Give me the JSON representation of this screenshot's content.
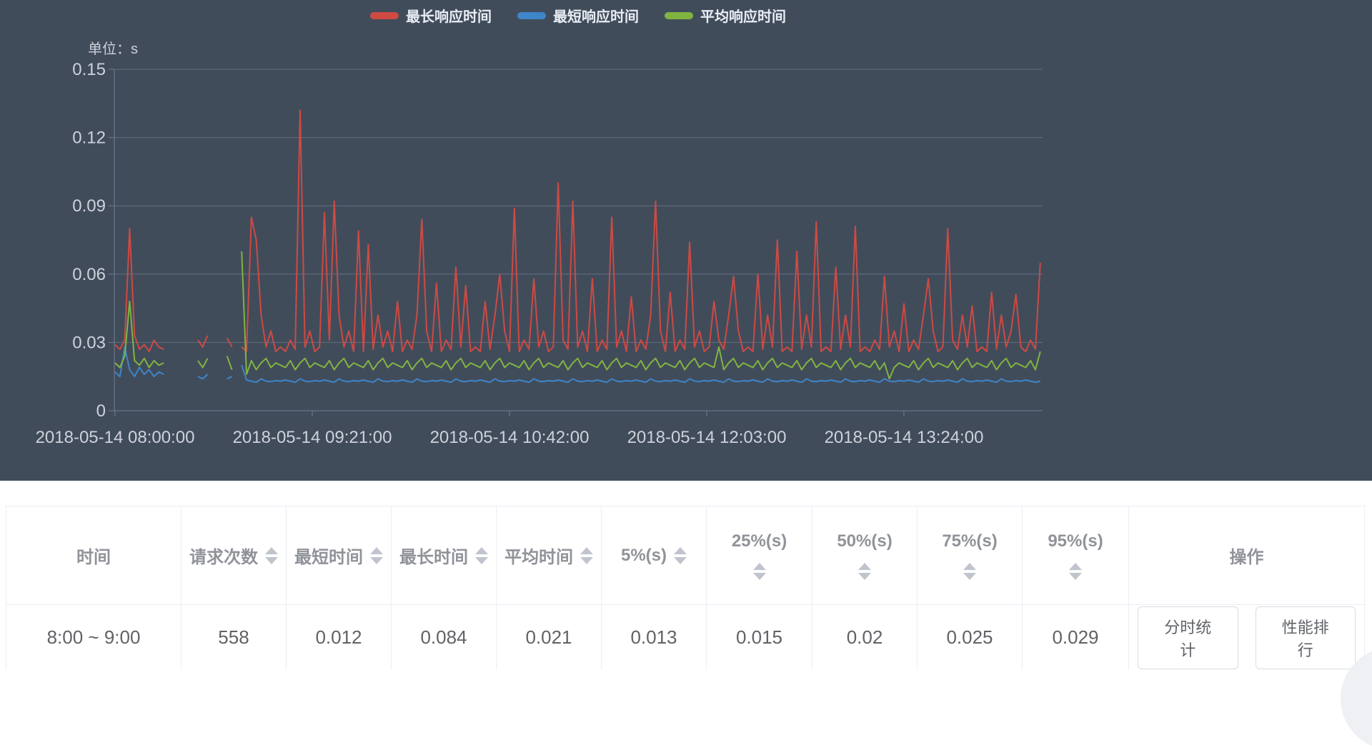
{
  "chart_data": {
    "type": "line",
    "unit_label": "单位：s",
    "background_color": "#414c5b",
    "grid": true,
    "legend_position": "top-center",
    "y_axis": {
      "ticks": [
        0,
        0.03,
        0.06,
        0.09,
        0.12,
        0.15
      ],
      "labels": [
        "0",
        "0.03",
        "0.06",
        "0.09",
        "0.12",
        "0.15"
      ],
      "min": 0,
      "max": 0.15
    },
    "x_axis": {
      "tick_minutes": [
        0,
        81,
        162,
        243,
        324
      ],
      "tick_labels": [
        "2018-05-14 08:00:00",
        "2018-05-14 09:21:00",
        "2018-05-14 10:42:00",
        "2018-05-14 12:03:00",
        "2018-05-14 13:24:00"
      ]
    },
    "t_minutes": [
      0,
      2,
      4,
      6,
      8,
      10,
      12,
      14,
      16,
      18,
      20,
      22,
      24,
      26,
      28,
      30,
      32,
      34,
      36,
      38,
      40,
      42,
      44,
      46,
      48,
      50,
      52,
      54,
      56,
      58,
      60,
      62,
      64,
      66,
      68,
      70,
      72,
      74,
      76,
      78,
      80,
      82,
      84,
      86,
      88,
      90,
      92,
      94,
      96,
      98,
      100,
      102,
      104,
      106,
      108,
      110,
      112,
      114,
      116,
      118,
      120,
      122,
      124,
      126,
      128,
      130,
      132,
      134,
      136,
      138,
      140,
      142,
      144,
      146,
      148,
      150,
      152,
      154,
      156,
      158,
      160,
      162,
      164,
      166,
      168,
      170,
      172,
      174,
      176,
      178,
      180,
      182,
      184,
      186,
      188,
      190,
      192,
      194,
      196,
      198,
      200,
      202,
      204,
      206,
      208,
      210,
      212,
      214,
      216,
      218,
      220,
      222,
      224,
      226,
      228,
      230,
      232,
      234,
      236,
      238,
      240,
      242,
      244,
      246,
      248,
      250,
      252,
      254,
      256,
      258,
      260,
      262,
      264,
      266,
      268,
      270,
      272,
      274,
      276,
      278,
      280,
      282,
      284,
      286,
      288,
      290,
      292,
      294,
      296,
      298,
      300,
      302,
      304,
      306,
      308,
      310,
      312,
      314,
      316,
      318,
      320,
      322,
      324,
      326,
      328,
      330,
      332,
      334,
      336,
      338,
      340,
      342,
      344,
      346,
      348,
      350,
      352,
      354,
      356,
      358,
      360,
      362,
      364,
      366,
      368,
      370,
      372,
      374,
      376,
      378,
      380
    ],
    "series": [
      {
        "name": "最长响应时间",
        "color": "#ce4a43",
        "values": [
          0.029,
          0.027,
          0.031,
          0.08,
          0.033,
          0.027,
          0.029,
          0.026,
          0.031,
          0.028,
          0.027,
          null,
          null,
          null,
          null,
          null,
          null,
          0.031,
          0.028,
          0.033,
          null,
          null,
          null,
          0.032,
          0.028,
          null,
          0.028,
          0.026,
          0.085,
          0.075,
          0.042,
          0.028,
          0.035,
          0.026,
          0.028,
          0.026,
          0.031,
          0.027,
          0.132,
          0.028,
          0.035,
          0.026,
          0.028,
          0.087,
          0.031,
          0.092,
          0.042,
          0.028,
          0.035,
          0.026,
          0.079,
          0.026,
          0.073,
          0.027,
          0.042,
          0.028,
          0.035,
          0.026,
          0.048,
          0.026,
          0.031,
          0.027,
          0.042,
          0.084,
          0.035,
          0.026,
          0.056,
          0.026,
          0.031,
          0.027,
          0.063,
          0.028,
          0.055,
          0.026,
          0.028,
          0.026,
          0.048,
          0.027,
          0.042,
          0.06,
          0.035,
          0.026,
          0.089,
          0.026,
          0.031,
          0.027,
          0.058,
          0.028,
          0.035,
          0.026,
          0.028,
          0.1,
          0.031,
          0.027,
          0.092,
          0.028,
          0.035,
          0.026,
          0.058,
          0.026,
          0.031,
          0.027,
          0.085,
          0.028,
          0.035,
          0.026,
          0.05,
          0.026,
          0.031,
          0.027,
          0.042,
          0.092,
          0.035,
          0.026,
          0.052,
          0.026,
          0.031,
          0.027,
          0.074,
          0.028,
          0.035,
          0.026,
          0.028,
          0.048,
          0.031,
          0.027,
          0.042,
          0.059,
          0.035,
          0.026,
          0.028,
          0.026,
          0.06,
          0.027,
          0.042,
          0.028,
          0.075,
          0.026,
          0.028,
          0.026,
          0.07,
          0.027,
          0.042,
          0.028,
          0.083,
          0.026,
          0.028,
          0.026,
          0.063,
          0.027,
          0.042,
          0.028,
          0.081,
          0.026,
          0.028,
          0.026,
          0.031,
          0.027,
          0.059,
          0.028,
          0.035,
          0.026,
          0.047,
          0.026,
          0.031,
          0.027,
          0.042,
          0.058,
          0.035,
          0.026,
          0.028,
          0.08,
          0.031,
          0.027,
          0.042,
          0.028,
          0.046,
          0.026,
          0.028,
          0.026,
          0.052,
          0.027,
          0.042,
          0.028,
          0.035,
          0.051,
          0.028,
          0.026,
          0.031,
          0.027,
          0.065
        ]
      },
      {
        "name": "最短响应时间",
        "color": "#3e85c9",
        "values": [
          0.017,
          0.015,
          0.028,
          0.018,
          0.015,
          0.019,
          0.016,
          0.018,
          0.015,
          0.017,
          0.016,
          null,
          null,
          null,
          null,
          null,
          null,
          0.015,
          0.014,
          0.016,
          null,
          null,
          null,
          0.014,
          0.015,
          null,
          0.02,
          0.0135,
          0.013,
          0.0125,
          0.014,
          0.013,
          0.0128,
          0.0132,
          0.013,
          0.0135,
          0.013,
          0.0125,
          0.014,
          0.013,
          0.0128,
          0.0132,
          0.013,
          0.0135,
          0.013,
          0.0125,
          0.014,
          0.013,
          0.0128,
          0.0132,
          0.013,
          0.0135,
          0.013,
          0.0125,
          0.014,
          0.013,
          0.0128,
          0.0132,
          0.013,
          0.0135,
          0.013,
          0.0125,
          0.014,
          0.013,
          0.0128,
          0.0132,
          0.013,
          0.0135,
          0.013,
          0.0125,
          0.014,
          0.013,
          0.0128,
          0.0132,
          0.013,
          0.0135,
          0.013,
          0.0125,
          0.014,
          0.013,
          0.0128,
          0.0132,
          0.013,
          0.0135,
          0.013,
          0.0125,
          0.014,
          0.013,
          0.0128,
          0.0132,
          0.013,
          0.0135,
          0.013,
          0.0125,
          0.014,
          0.013,
          0.0128,
          0.0132,
          0.013,
          0.0135,
          0.013,
          0.0125,
          0.014,
          0.013,
          0.0128,
          0.0132,
          0.013,
          0.0135,
          0.013,
          0.0125,
          0.014,
          0.013,
          0.0128,
          0.0132,
          0.013,
          0.0135,
          0.013,
          0.0125,
          0.014,
          0.013,
          0.0128,
          0.0132,
          0.013,
          0.0135,
          0.013,
          0.0125,
          0.014,
          0.013,
          0.0128,
          0.0132,
          0.013,
          0.0135,
          0.013,
          0.0125,
          0.014,
          0.013,
          0.0128,
          0.0132,
          0.013,
          0.0135,
          0.013,
          0.0125,
          0.014,
          0.013,
          0.0128,
          0.0132,
          0.013,
          0.0135,
          0.013,
          0.0125,
          0.014,
          0.013,
          0.0128,
          0.0132,
          0.013,
          0.0135,
          0.013,
          0.0125,
          0.014,
          0.013,
          0.0128,
          0.0132,
          0.013,
          0.0135,
          0.013,
          0.0125,
          0.014,
          0.013,
          0.0128,
          0.0132,
          0.013,
          0.0135,
          0.013,
          0.0125,
          0.014,
          0.013,
          0.0128,
          0.0132,
          0.013,
          0.0135,
          0.013,
          0.0125,
          0.014,
          0.013,
          0.0128,
          0.0132,
          0.013,
          0.0135,
          0.013,
          0.0125,
          0.013
        ]
      },
      {
        "name": "平均响应时间",
        "color": "#80b441",
        "values": [
          0.021,
          0.019,
          0.024,
          0.048,
          0.022,
          0.02,
          0.023,
          0.019,
          0.022,
          0.02,
          0.021,
          null,
          null,
          null,
          null,
          null,
          null,
          0.022,
          0.019,
          0.023,
          null,
          null,
          null,
          0.024,
          0.018,
          null,
          0.07,
          0.016,
          0.022,
          0.018,
          0.021,
          0.023,
          0.019,
          0.021,
          0.02,
          0.019,
          0.022,
          0.018,
          0.021,
          0.023,
          0.019,
          0.021,
          0.02,
          0.019,
          0.022,
          0.018,
          0.021,
          0.023,
          0.019,
          0.021,
          0.02,
          0.019,
          0.022,
          0.018,
          0.021,
          0.023,
          0.019,
          0.021,
          0.02,
          0.019,
          0.022,
          0.018,
          0.021,
          0.023,
          0.019,
          0.021,
          0.02,
          0.019,
          0.022,
          0.018,
          0.021,
          0.023,
          0.019,
          0.021,
          0.02,
          0.019,
          0.022,
          0.018,
          0.021,
          0.023,
          0.019,
          0.021,
          0.02,
          0.019,
          0.022,
          0.018,
          0.021,
          0.023,
          0.019,
          0.021,
          0.02,
          0.019,
          0.022,
          0.018,
          0.021,
          0.023,
          0.019,
          0.021,
          0.02,
          0.019,
          0.022,
          0.018,
          0.021,
          0.023,
          0.019,
          0.021,
          0.02,
          0.019,
          0.022,
          0.018,
          0.021,
          0.023,
          0.019,
          0.021,
          0.02,
          0.019,
          0.022,
          0.018,
          0.021,
          0.023,
          0.019,
          0.021,
          0.02,
          0.019,
          0.028,
          0.018,
          0.021,
          0.023,
          0.019,
          0.021,
          0.02,
          0.019,
          0.022,
          0.018,
          0.021,
          0.023,
          0.019,
          0.021,
          0.02,
          0.019,
          0.022,
          0.018,
          0.021,
          0.023,
          0.019,
          0.021,
          0.02,
          0.019,
          0.022,
          0.018,
          0.021,
          0.023,
          0.019,
          0.021,
          0.02,
          0.019,
          0.022,
          0.018,
          0.021,
          0.014,
          0.019,
          0.021,
          0.02,
          0.019,
          0.022,
          0.018,
          0.021,
          0.023,
          0.019,
          0.021,
          0.02,
          0.019,
          0.022,
          0.018,
          0.021,
          0.023,
          0.019,
          0.021,
          0.02,
          0.019,
          0.022,
          0.018,
          0.021,
          0.023,
          0.019,
          0.021,
          0.02,
          0.019,
          0.022,
          0.018,
          0.026
        ]
      }
    ]
  },
  "table": {
    "columns": [
      {
        "label": "时间",
        "sortable": false
      },
      {
        "label": "请求次数",
        "sortable": true
      },
      {
        "label": "最短时间",
        "sortable": true
      },
      {
        "label": "最长时间",
        "sortable": true
      },
      {
        "label": "平均时间",
        "sortable": true
      },
      {
        "label": "5%(s)",
        "sortable": true
      },
      {
        "label": "25%(s)",
        "sortable": true
      },
      {
        "label": "50%(s)",
        "sortable": true
      },
      {
        "label": "75%(s)",
        "sortable": true
      },
      {
        "label": "95%(s)",
        "sortable": true
      },
      {
        "label": "操作",
        "sortable": false
      }
    ],
    "rows": [
      {
        "cells": [
          "8:00 ~ 9:00",
          "558",
          "0.012",
          "0.084",
          "0.021",
          "0.013",
          "0.015",
          "0.02",
          "0.025",
          "0.029"
        ],
        "actions": [
          "分时统计",
          "性能排行"
        ]
      }
    ]
  },
  "colors": {
    "panel_bg": "#414c5b",
    "axis_line": "#707e96",
    "grid_line": "rgba(200,212,233,0.25)",
    "axis_text": "#cdd2da",
    "table_border": "#ebeef5",
    "header_text": "#909399",
    "cell_text": "#606266",
    "caret": "#c0c4cc"
  }
}
